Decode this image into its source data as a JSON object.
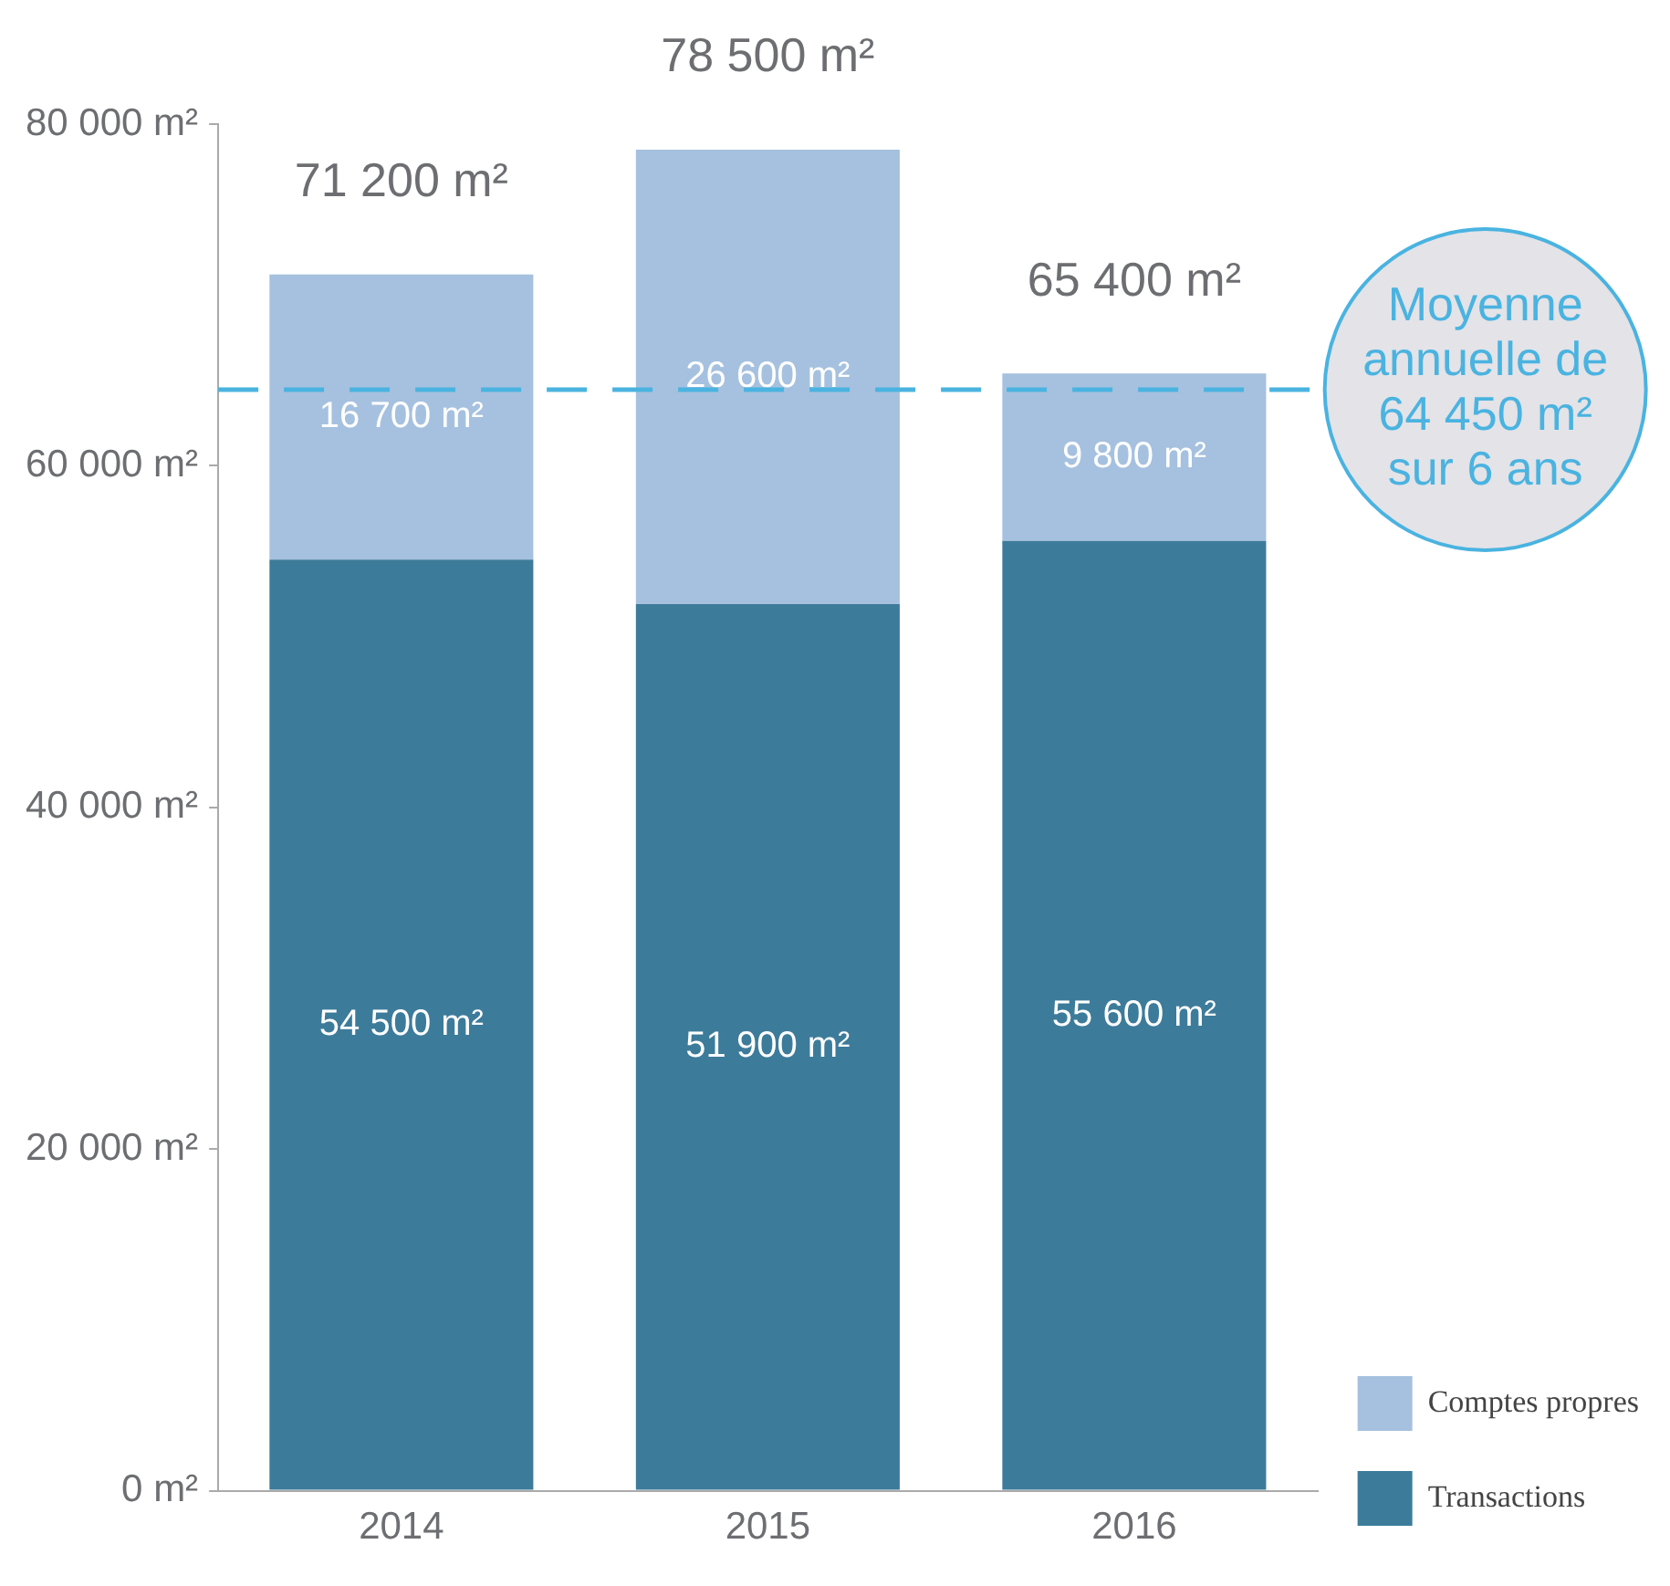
{
  "chart_data": {
    "type": "bar",
    "stacked": true,
    "categories": [
      "2014",
      "2015",
      "2016"
    ],
    "series": [
      {
        "name": "Transactions",
        "color": "#3d7b9a",
        "values": [
          54500,
          51900,
          55600
        ],
        "value_labels": [
          "54 500 m²",
          "51 900 m²",
          "55 600 m²"
        ]
      },
      {
        "name": "Comptes propres",
        "color": "#a6c1df",
        "values": [
          16700,
          26600,
          9800
        ],
        "value_labels": [
          "16 700 m²",
          "26 600 m²",
          "9 800 m²"
        ]
      }
    ],
    "totals": [
      "71 200 m²",
      "78 500 m²",
      "65 400 m²"
    ],
    "ylim": [
      0,
      80000
    ],
    "yticks": [
      {
        "value": 0,
        "label": "0 m²"
      },
      {
        "value": 20000,
        "label": "20 000 m²"
      },
      {
        "value": 40000,
        "label": "40 000 m²"
      },
      {
        "value": 60000,
        "label": "60 000 m²"
      },
      {
        "value": 80000,
        "label": "80 000 m²"
      }
    ],
    "ref_lines": [
      {
        "axis": "y",
        "value": 64450,
        "label": "Moyenne annuelle de 64 450 m² sur 6 ans",
        "color": "#4ab3e0",
        "line_style": "dashed"
      }
    ],
    "grid": false,
    "legend": "bottom right"
  }
}
